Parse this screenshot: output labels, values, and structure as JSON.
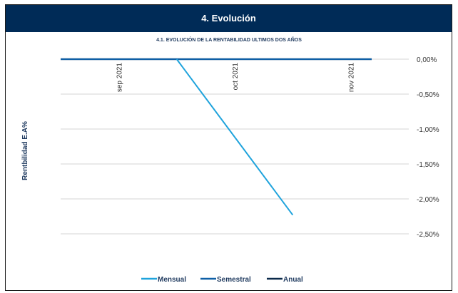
{
  "header": {
    "title": "4. Evolución"
  },
  "chart_data": {
    "type": "line",
    "title": "4.1. EVOLUCIÓN DE LA RENTABILIDAD ULTIMOS DOS AÑOS",
    "xlabel": "",
    "ylabel": "Rentbilidad  E.A%",
    "categories": [
      "sep 2021",
      "oct 2021",
      "nov 2021"
    ],
    "ylim": [
      -2.5,
      0
    ],
    "yticks": [
      0,
      -0.5,
      -1.0,
      -1.5,
      -2.0,
      -2.5
    ],
    "ytick_labels": [
      "0,00%",
      "-0,50%",
      "-1,00%",
      "-1,50%",
      "-2,00%",
      "-2,50%"
    ],
    "grid": true,
    "legend_position": "bottom",
    "series": [
      {
        "name": "Mensual",
        "color": "#1fa3dc",
        "values": [
          null,
          0,
          -2.23
        ]
      },
      {
        "name": "Semestral",
        "color": "#0e5fa6",
        "values": [
          0,
          0,
          0
        ]
      },
      {
        "name": "Anual",
        "color": "#0b2a4a",
        "values": [
          0,
          0,
          0
        ]
      }
    ]
  }
}
